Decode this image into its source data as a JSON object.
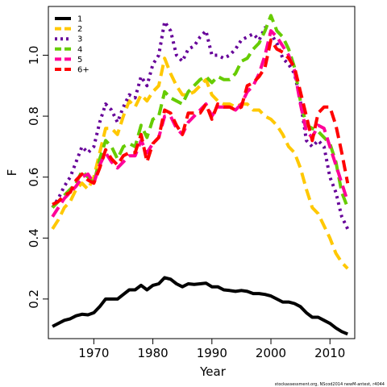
{
  "chart_data": {
    "type": "line",
    "xlabel": "Year",
    "ylabel": "F",
    "xlim": [
      1962.3,
      2014.2
    ],
    "ylim": [
      0.07,
      1.16
    ],
    "x_ticks": [
      1970,
      1980,
      1990,
      2000,
      2010
    ],
    "y_ticks": [
      0.2,
      0.4,
      0.6,
      0.8,
      1.0
    ],
    "y_tick_labels": [
      "0.2",
      "0.4",
      "0.6",
      "0.8",
      "1.0"
    ],
    "grid": false,
    "legend_position": "top-left",
    "footer": "stockassessment.org, NScod2014 newM-antest, r4044",
    "x": [
      1963,
      1964,
      1965,
      1966,
      1967,
      1968,
      1969,
      1970,
      1971,
      1972,
      1973,
      1974,
      1975,
      1976,
      1977,
      1978,
      1979,
      1980,
      1981,
      1982,
      1983,
      1984,
      1985,
      1986,
      1987,
      1988,
      1989,
      1990,
      1991,
      1992,
      1993,
      1994,
      1995,
      1996,
      1997,
      1998,
      1999,
      2000,
      2001,
      2002,
      2003,
      2004,
      2005,
      2006,
      2007,
      2008,
      2009,
      2010,
      2011,
      2012,
      2013
    ],
    "series": [
      {
        "name": "1",
        "color": "#000000",
        "dash": "solid",
        "values": [
          0.11,
          0.12,
          0.13,
          0.135,
          0.145,
          0.15,
          0.148,
          0.155,
          0.175,
          0.2,
          0.2,
          0.2,
          0.215,
          0.23,
          0.23,
          0.245,
          0.23,
          0.245,
          0.25,
          0.27,
          0.265,
          0.25,
          0.24,
          0.25,
          0.248,
          0.25,
          0.252,
          0.24,
          0.24,
          0.23,
          0.228,
          0.225,
          0.228,
          0.225,
          0.218,
          0.218,
          0.215,
          0.21,
          0.2,
          0.19,
          0.19,
          0.185,
          0.175,
          0.155,
          0.14,
          0.14,
          0.13,
          0.12,
          0.105,
          0.093,
          0.085
        ]
      },
      {
        "name": "2",
        "color": "#FFC800",
        "dash": "dashed",
        "values": [
          0.43,
          0.46,
          0.5,
          0.52,
          0.56,
          0.58,
          0.56,
          0.6,
          0.68,
          0.76,
          0.76,
          0.74,
          0.8,
          0.85,
          0.83,
          0.87,
          0.85,
          0.88,
          0.9,
          0.99,
          0.94,
          0.9,
          0.87,
          0.87,
          0.88,
          0.9,
          0.92,
          0.87,
          0.85,
          0.84,
          0.84,
          0.83,
          0.84,
          0.84,
          0.82,
          0.82,
          0.8,
          0.79,
          0.77,
          0.74,
          0.7,
          0.68,
          0.63,
          0.56,
          0.5,
          0.48,
          0.44,
          0.4,
          0.35,
          0.32,
          0.3
        ]
      },
      {
        "name": "3",
        "color": "#660099",
        "dash": "dotted",
        "values": [
          0.5,
          0.53,
          0.57,
          0.6,
          0.65,
          0.7,
          0.68,
          0.7,
          0.78,
          0.84,
          0.82,
          0.78,
          0.83,
          0.87,
          0.86,
          0.93,
          0.9,
          0.97,
          1.0,
          1.11,
          1.08,
          1.0,
          0.98,
          1.02,
          1.03,
          1.06,
          1.08,
          1.0,
          1.0,
          0.99,
          1.0,
          1.02,
          1.05,
          1.06,
          1.07,
          1.05,
          1.09,
          1.07,
          1.04,
          0.99,
          0.97,
          0.94,
          0.85,
          0.72,
          0.7,
          0.72,
          0.7,
          0.6,
          0.55,
          0.47,
          0.43
        ]
      },
      {
        "name": "4",
        "color": "#66CC00",
        "dash": "dashed",
        "values": [
          0.5,
          0.52,
          0.54,
          0.56,
          0.58,
          0.62,
          0.6,
          0.58,
          0.66,
          0.72,
          0.7,
          0.66,
          0.7,
          0.71,
          0.7,
          0.77,
          0.73,
          0.79,
          0.8,
          0.88,
          0.86,
          0.85,
          0.84,
          0.88,
          0.9,
          0.92,
          0.93,
          0.91,
          0.93,
          0.92,
          0.92,
          0.94,
          0.98,
          0.99,
          1.02,
          1.04,
          1.08,
          1.13,
          1.08,
          1.06,
          1.02,
          0.96,
          0.85,
          0.77,
          0.76,
          0.75,
          0.73,
          0.71,
          0.65,
          0.55,
          0.5
        ]
      },
      {
        "name": "5",
        "color": "#FF0099",
        "dash": "dashed",
        "values": [
          0.47,
          0.5,
          0.53,
          0.55,
          0.57,
          0.6,
          0.61,
          0.58,
          0.64,
          0.68,
          0.65,
          0.63,
          0.65,
          0.67,
          0.67,
          0.72,
          0.68,
          0.71,
          0.73,
          0.8,
          0.8,
          0.76,
          0.74,
          0.78,
          0.8,
          0.82,
          0.84,
          0.8,
          0.83,
          0.83,
          0.83,
          0.82,
          0.84,
          0.88,
          0.9,
          0.94,
          1.0,
          1.08,
          1.06,
          1.03,
          1.0,
          0.95,
          0.84,
          0.75,
          0.73,
          0.77,
          0.76,
          0.7,
          0.64,
          0.58,
          0.52
        ]
      },
      {
        "name": "6+",
        "color": "#FF0000",
        "dash": "dashed",
        "values": [
          0.51,
          0.52,
          0.54,
          0.55,
          0.59,
          0.61,
          0.59,
          0.58,
          0.63,
          0.69,
          0.66,
          0.64,
          0.67,
          0.68,
          0.68,
          0.74,
          0.65,
          0.71,
          0.73,
          0.82,
          0.81,
          0.77,
          0.74,
          0.81,
          0.81,
          0.81,
          0.84,
          0.79,
          0.84,
          0.83,
          0.83,
          0.82,
          0.83,
          0.9,
          0.91,
          0.93,
          0.96,
          1.05,
          1.02,
          1.01,
          0.99,
          0.96,
          0.88,
          0.8,
          0.72,
          0.81,
          0.83,
          0.83,
          0.77,
          0.68,
          0.58
        ]
      }
    ]
  }
}
